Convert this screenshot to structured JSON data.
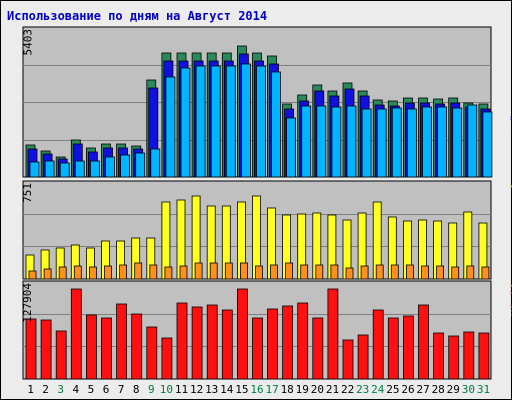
{
  "title": "Использование по дням на Август 2014",
  "chart_data": {
    "type": "bar",
    "title": "Использование по дням на Август 2014",
    "x": [
      "1",
      "2",
      "3",
      "4",
      "5",
      "6",
      "7",
      "8",
      "9",
      "10",
      "11",
      "12",
      "13",
      "14",
      "15",
      "16",
      "17",
      "18",
      "19",
      "20",
      "21",
      "22",
      "23",
      "24",
      "25",
      "26",
      "27",
      "28",
      "29",
      "30",
      "31"
    ],
    "weekend": [
      "3",
      "9",
      "10",
      "16",
      "17",
      "23",
      "24",
      "30",
      "31"
    ],
    "panels": [
      {
        "name": "top",
        "ymax_label": "5403",
        "ymax": 5403,
        "right_labels": [
          {
            "text": "запросов",
            "color": "#008040"
          },
          {
            "text": " / ",
            "color": "#000000"
          },
          {
            "text": "файлов",
            "color": "#0000c8"
          },
          {
            "text": " / ",
            "color": "#000000"
          },
          {
            "text": "страниц",
            "color": "#00a0e0"
          }
        ],
        "series": [
          {
            "name": "запросов",
            "color": "#2b8a5c",
            "values": [
              1205,
              1005,
              757,
              1394,
              1087,
              1239,
              1264,
              1195,
              3695,
              4710,
              4710,
              4710,
              4710,
              4710,
              5003,
              4710,
              4593,
              2776,
              3125,
              3515,
              3280,
              3574,
              3271,
              2932,
              2874,
              3006,
              2991,
              2972,
              3015,
              2829,
              2772
            ]
          },
          {
            "name": "файлов",
            "color": "#1010e0",
            "values": [
              1060,
              890,
              680,
              1250,
              960,
              1100,
              1120,
              1060,
              3400,
              4429,
              4429,
              4429,
              4429,
              4429,
              4699,
              4429,
              4310,
              2576,
              2900,
              3290,
              3080,
              3360,
              3070,
              2746,
              2692,
              2814,
              2800,
              2788,
              2826,
              2655,
              2600
            ]
          },
          {
            "name": "страниц",
            "color": "#00b4ff",
            "values": [
              552,
              600,
              525,
              600,
              615,
              780,
              825,
              930,
              1050,
              3795,
              4140,
              4230,
              4230,
              4230,
              4290,
              4230,
              4011,
              2250,
              2686,
              2714,
              2656,
              2714,
              2597,
              2597,
              2626,
              2600,
              2656,
              2656,
              2626,
              2743,
              2482
            ]
          }
        ]
      },
      {
        "name": "middle",
        "ymax_label": "751",
        "ymax": 751,
        "right_labels": [
          {
            "text": "сайтов",
            "color": "#e07000"
          },
          {
            "text": " / ",
            "color": "#000000"
          },
          {
            "text": "посещений",
            "color": "#c0c000"
          }
        ],
        "series": [
          {
            "name": "посещений",
            "color": "#ffff20",
            "values": [
              200,
              240,
              260,
              280,
              260,
              320,
              320,
              340,
              340,
              640,
              660,
              690,
              610,
              610,
              640,
              690,
              590,
              530,
              540,
              550,
              530,
              490,
              550,
              640,
              520,
              480,
              490,
              480,
              470,
              560,
              470
            ]
          },
          {
            "name": "сайтов",
            "color": "#ff9020",
            "values": [
              70,
              80,
              100,
              110,
              100,
              110,
              120,
              130,
              120,
              100,
              110,
              130,
              130,
              130,
              130,
              110,
              120,
              130,
              120,
              120,
              120,
              90,
              110,
              120,
              120,
              120,
              110,
              110,
              100,
              110,
              100
            ]
          }
        ]
      },
      {
        "name": "bottom",
        "ymax_label": "127904",
        "ymax": 127904,
        "right_labels": [
          {
            "text": "Кбайт",
            "color": "#e00000"
          }
        ],
        "series": [
          {
            "name": "Кбайт",
            "color": "#ff1010",
            "values": [
              85500,
              84000,
              68500,
              127900,
              91600,
              87100,
              106000,
              92800,
              73300,
              58000,
              107300,
              102500,
              105000,
              97900,
              127900,
              86500,
              99700,
              104000,
              107800,
              86400,
              127900,
              54800,
              63000,
              98100,
              86400,
              90200,
              104900,
              66000,
              61000,
              67500,
              66000
            ]
          }
        ]
      }
    ]
  }
}
